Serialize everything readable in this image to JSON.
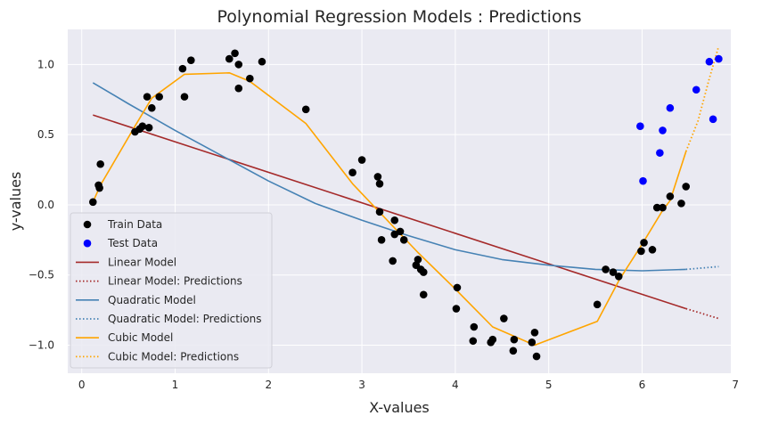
{
  "chart_data": {
    "type": "scatter",
    "title": "Polynomial Regression Models : Predictions",
    "xlabel": "X-values",
    "ylabel": "y-values",
    "xlim": [
      -0.15,
      6.95
    ],
    "ylim": [
      -1.2,
      1.25
    ],
    "xticks": [
      0,
      1,
      2,
      3,
      4,
      5,
      6,
      7
    ],
    "yticks": [
      -1.0,
      -0.5,
      0.0,
      0.5,
      1.0
    ],
    "xtick_labels": [
      "0",
      "1",
      "2",
      "3",
      "4",
      "5",
      "6",
      "7"
    ],
    "ytick_labels": [
      "−1.0",
      "−0.5",
      "0.0",
      "0.5",
      "1.0"
    ],
    "grid": true,
    "legend_position": "lower-left",
    "background_color": "#eaeaf2",
    "series": [
      {
        "name": "Train Data",
        "kind": "scatter",
        "color": "#000000",
        "points": [
          [
            0.12,
            0.02
          ],
          [
            0.18,
            0.14
          ],
          [
            0.19,
            0.12
          ],
          [
            0.2,
            0.29
          ],
          [
            0.57,
            0.52
          ],
          [
            0.62,
            0.54
          ],
          [
            0.65,
            0.56
          ],
          [
            0.7,
            0.77
          ],
          [
            0.72,
            0.55
          ],
          [
            0.75,
            0.69
          ],
          [
            0.83,
            0.77
          ],
          [
            1.08,
            0.97
          ],
          [
            1.1,
            0.77
          ],
          [
            1.17,
            1.03
          ],
          [
            1.58,
            1.04
          ],
          [
            1.64,
            1.08
          ],
          [
            1.68,
            0.83
          ],
          [
            1.68,
            1.0
          ],
          [
            1.8,
            0.9
          ],
          [
            1.93,
            1.02
          ],
          [
            2.4,
            0.68
          ],
          [
            2.9,
            0.23
          ],
          [
            3.0,
            0.32
          ],
          [
            3.17,
            0.2
          ],
          [
            3.19,
            0.15
          ],
          [
            3.19,
            -0.05
          ],
          [
            3.21,
            -0.25
          ],
          [
            3.33,
            -0.4
          ],
          [
            3.35,
            -0.11
          ],
          [
            3.35,
            -0.21
          ],
          [
            3.41,
            -0.19
          ],
          [
            3.45,
            -0.25
          ],
          [
            3.58,
            -0.43
          ],
          [
            3.6,
            -0.39
          ],
          [
            3.63,
            -0.46
          ],
          [
            3.66,
            -0.48
          ],
          [
            3.66,
            -0.64
          ],
          [
            4.01,
            -0.74
          ],
          [
            4.02,
            -0.59
          ],
          [
            4.19,
            -0.97
          ],
          [
            4.2,
            -0.87
          ],
          [
            4.38,
            -0.98
          ],
          [
            4.4,
            -0.96
          ],
          [
            4.52,
            -0.81
          ],
          [
            4.62,
            -1.04
          ],
          [
            4.63,
            -0.96
          ],
          [
            4.82,
            -0.98
          ],
          [
            4.85,
            -0.91
          ],
          [
            4.87,
            -1.08
          ],
          [
            5.52,
            -0.71
          ],
          [
            5.61,
            -0.46
          ],
          [
            5.69,
            -0.48
          ],
          [
            5.75,
            -0.51
          ],
          [
            5.99,
            -0.33
          ],
          [
            6.02,
            -0.27
          ],
          [
            6.11,
            -0.32
          ],
          [
            6.16,
            -0.02
          ],
          [
            6.22,
            -0.02
          ],
          [
            6.3,
            0.06
          ],
          [
            6.42,
            0.01
          ],
          [
            6.47,
            0.13
          ]
        ]
      },
      {
        "name": "Test Data",
        "kind": "scatter",
        "color": "#0000ff",
        "points": [
          [
            5.98,
            0.56
          ],
          [
            6.01,
            0.17
          ],
          [
            6.19,
            0.37
          ],
          [
            6.22,
            0.53
          ],
          [
            6.3,
            0.69
          ],
          [
            6.58,
            0.82
          ],
          [
            6.72,
            1.02
          ],
          [
            6.76,
            0.61
          ],
          [
            6.82,
            1.04
          ]
        ]
      },
      {
        "name": "Linear Model",
        "kind": "line",
        "color": "#a52a2a",
        "points": [
          [
            0.12,
            0.64
          ],
          [
            6.47,
            -0.74
          ]
        ]
      },
      {
        "name": "Linear Model: Predictions",
        "kind": "dotted",
        "color": "#a52a2a",
        "points": [
          [
            6.47,
            -0.74
          ],
          [
            6.82,
            -0.81
          ]
        ]
      },
      {
        "name": "Quadratic Model",
        "kind": "line",
        "color": "#4682b4",
        "points": [
          [
            0.12,
            0.87
          ],
          [
            0.5,
            0.72
          ],
          [
            1.0,
            0.53
          ],
          [
            1.5,
            0.35
          ],
          [
            2.0,
            0.17
          ],
          [
            2.5,
            0.01
          ],
          [
            3.0,
            -0.11
          ],
          [
            3.5,
            -0.22
          ],
          [
            4.0,
            -0.32
          ],
          [
            4.5,
            -0.39
          ],
          [
            5.0,
            -0.43
          ],
          [
            5.5,
            -0.46
          ],
          [
            6.0,
            -0.47
          ],
          [
            6.47,
            -0.46
          ]
        ]
      },
      {
        "name": "Quadratic Model: Predictions",
        "kind": "dotted",
        "color": "#4682b4",
        "points": [
          [
            6.47,
            -0.46
          ],
          [
            6.82,
            -0.44
          ]
        ]
      },
      {
        "name": "Cubic Model",
        "kind": "line",
        "color": "#ffa500",
        "points": [
          [
            0.12,
            0.02
          ],
          [
            0.2,
            0.14
          ],
          [
            0.57,
            0.56
          ],
          [
            0.75,
            0.76
          ],
          [
            1.1,
            0.93
          ],
          [
            1.58,
            0.94
          ],
          [
            1.8,
            0.88
          ],
          [
            2.4,
            0.58
          ],
          [
            2.9,
            0.15
          ],
          [
            3.2,
            -0.06
          ],
          [
            3.6,
            -0.34
          ],
          [
            4.0,
            -0.6
          ],
          [
            4.4,
            -0.87
          ],
          [
            4.85,
            -1.0
          ],
          [
            5.52,
            -0.83
          ],
          [
            5.76,
            -0.53
          ],
          [
            6.0,
            -0.28
          ],
          [
            6.22,
            -0.04
          ],
          [
            6.3,
            0.03
          ],
          [
            6.47,
            0.38
          ]
        ]
      },
      {
        "name": "Cubic Model: Predictions",
        "kind": "dotted",
        "color": "#ffa500",
        "points": [
          [
            6.47,
            0.38
          ],
          [
            6.6,
            0.6
          ],
          [
            6.72,
            0.9
          ],
          [
            6.82,
            1.13
          ]
        ]
      }
    ]
  }
}
